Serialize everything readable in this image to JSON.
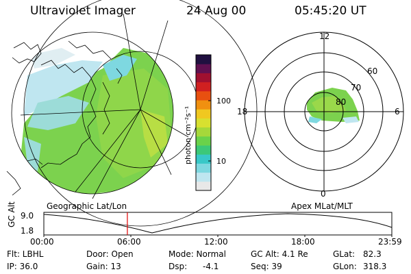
{
  "header": {
    "title": "Ultraviolet Imager",
    "date": "24 Aug 00",
    "time": "05:45:20 UT"
  },
  "colorbar": {
    "label": "photon cm⁻²s⁻¹",
    "ticks": [
      "100",
      "10"
    ],
    "colors": [
      "#e8e8e8",
      "#bfe6f0",
      "#7ed8e0",
      "#38c8c8",
      "#3cc878",
      "#6ad24a",
      "#a6d83a",
      "#d8e030",
      "#f0c820",
      "#f09010",
      "#e85010",
      "#d02020",
      "#a01030",
      "#601050",
      "#201040"
    ]
  },
  "left_map": {
    "caption": "Geographic Lat/Lon"
  },
  "right_map": {
    "caption": "Apex MLat/MLT",
    "mlt_labels": [
      "12",
      "18",
      "6",
      "0"
    ],
    "lat_labels": [
      "60",
      "70",
      "80"
    ]
  },
  "timeline": {
    "ylabel": "GC Alt",
    "yticks": [
      "9.0",
      "1.8"
    ],
    "xticks": [
      "00:00",
      "06:00",
      "12:00",
      "18:00",
      "23:59"
    ],
    "marker_hour": 5.76
  },
  "info": {
    "filter_label": "Flt: LBHL",
    "ip_label": "IP: 36.0",
    "door_label": "Door: Open",
    "gain_label": "Gain: 13",
    "mode_label": "Mode: Normal",
    "dsp_label": "Dsp:",
    "dsp_value": "-4.1",
    "gcalt_label": "GC Alt: 4.1 Re",
    "seq_label": "Seq: 39",
    "glat_label": "GLat:",
    "glat_value": "82.3",
    "glon_label": "GLon:",
    "glon_value": "318.3"
  }
}
